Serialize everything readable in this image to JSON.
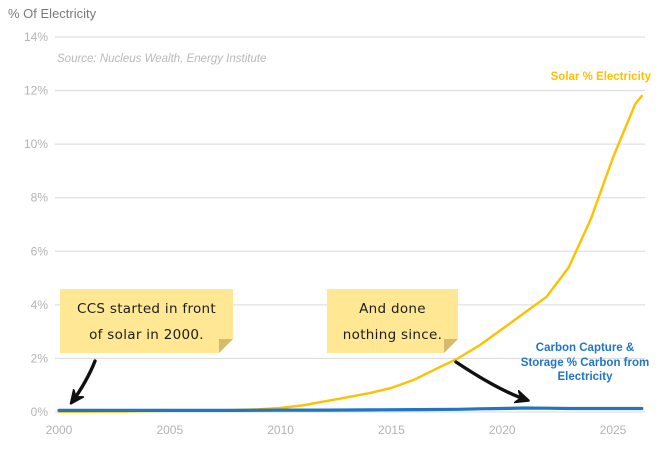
{
  "page": {
    "title": "% Of Electricity",
    "source": "Source: Nucleus Wealth, Energy Institute"
  },
  "colors": {
    "solar": "#FFC000",
    "ccs": "#2176C4",
    "gridline": "#D9D9D9",
    "tick_label": "#B3B3B3",
    "title": "#7A7A7A",
    "source": "#B9B9B9",
    "note_bg": "#FFE794",
    "note_fold": "#D5BB6E",
    "arrow": "#111111"
  },
  "series_labels": {
    "solar": "Solar % Electricity",
    "ccs_line1": "Carbon Capture &",
    "ccs_line2": "Storage % Carbon from",
    "ccs_line3": "Electricity"
  },
  "annotations": {
    "note1": {
      "line1": "CCS started in front",
      "line2": "of solar in 2000."
    },
    "note2": {
      "line1": "And done",
      "line2": "nothing since."
    }
  },
  "chart_data": {
    "type": "line",
    "title": "% Of Electricity",
    "xlabel": "",
    "ylabel": "% Of Electricity",
    "xlim": [
      1999.8,
      2026.6
    ],
    "ylim": [
      0,
      14
    ],
    "grid": "horizontal",
    "legend_position": "inline-end-labels",
    "x_ticks": [
      2000,
      2005,
      2010,
      2015,
      2020,
      2025
    ],
    "x_tick_labels": [
      "2000",
      "2005",
      "2010",
      "2015",
      "2020",
      "2025"
    ],
    "y_ticks": [
      0,
      2,
      4,
      6,
      8,
      10,
      12,
      14
    ],
    "y_tick_labels": [
      "0%",
      "2%",
      "4%",
      "6%",
      "8%",
      "10%",
      "12%",
      "14%"
    ],
    "series": [
      {
        "name": "Solar % Electricity",
        "color": "#FFC000",
        "points": [
          [
            2000,
            0.01
          ],
          [
            2001,
            0.01
          ],
          [
            2002,
            0.02
          ],
          [
            2003,
            0.02
          ],
          [
            2004,
            0.03
          ],
          [
            2005,
            0.04
          ],
          [
            2006,
            0.05
          ],
          [
            2007,
            0.06
          ],
          [
            2008,
            0.08
          ],
          [
            2009,
            0.1
          ],
          [
            2010,
            0.15
          ],
          [
            2011,
            0.25
          ],
          [
            2012,
            0.4
          ],
          [
            2013,
            0.55
          ],
          [
            2014,
            0.7
          ],
          [
            2015,
            0.9
          ],
          [
            2016,
            1.2
          ],
          [
            2017,
            1.6
          ],
          [
            2018,
            2.0
          ],
          [
            2019,
            2.5
          ],
          [
            2020,
            3.1
          ],
          [
            2021,
            3.7
          ],
          [
            2022,
            4.3
          ],
          [
            2023,
            5.4
          ],
          [
            2024,
            7.2
          ],
          [
            2025,
            9.5
          ],
          [
            2026,
            11.5
          ],
          [
            2026.3,
            11.8
          ]
        ]
      },
      {
        "name": "Carbon Capture & Storage % Carbon from Electricity",
        "color": "#2176C4",
        "points": [
          [
            2000,
            0.06
          ],
          [
            2002,
            0.06
          ],
          [
            2004,
            0.06
          ],
          [
            2006,
            0.06
          ],
          [
            2008,
            0.06
          ],
          [
            2010,
            0.07
          ],
          [
            2012,
            0.07
          ],
          [
            2014,
            0.08
          ],
          [
            2016,
            0.09
          ],
          [
            2018,
            0.1
          ],
          [
            2019,
            0.12
          ],
          [
            2020,
            0.13
          ],
          [
            2021,
            0.15
          ],
          [
            2022,
            0.14
          ],
          [
            2023,
            0.13
          ],
          [
            2024,
            0.13
          ],
          [
            2025,
            0.13
          ],
          [
            2026.3,
            0.13
          ]
        ]
      }
    ]
  }
}
